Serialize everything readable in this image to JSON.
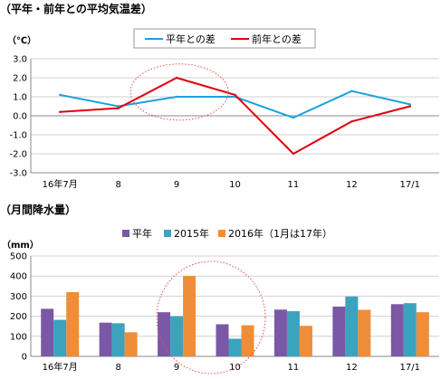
{
  "titles": {
    "temp": "（平年・前年との平均気温差）",
    "rain": "（月間降水量）"
  },
  "chart_data": [
    {
      "type": "line",
      "unit": "（℃）",
      "categories": [
        "16年7月",
        "8",
        "9",
        "10",
        "11",
        "12",
        "17/1"
      ],
      "ylim": [
        -3.0,
        3.0
      ],
      "yticks": [
        "3.0",
        "2.0",
        "1.0",
        "0.0",
        "-1.0",
        "-2.0",
        "-3.0"
      ],
      "grid": true,
      "legend_position": "top",
      "series": [
        {
          "name": "平年との差",
          "color": "#1aa3dc",
          "values": [
            1.1,
            0.5,
            1.0,
            1.0,
            -0.1,
            1.3,
            0.6
          ]
        },
        {
          "name": "前年との差",
          "color": "#e0000f",
          "values": [
            0.2,
            0.4,
            2.0,
            1.1,
            -2.0,
            -0.3,
            0.5
          ]
        }
      ],
      "annotation": "dotted ellipse around month 9"
    },
    {
      "type": "bar",
      "unit": "（mm）",
      "categories": [
        "16年7月",
        "8",
        "9",
        "10",
        "11",
        "12",
        "17/1"
      ],
      "ylim": [
        0,
        500
      ],
      "yticks": [
        "500",
        "400",
        "300",
        "200",
        "100",
        "0"
      ],
      "grid": true,
      "legend_position": "top",
      "series": [
        {
          "name": "平年",
          "color": "#7a58a6",
          "values": [
            237,
            168,
            220,
            160,
            233,
            248,
            260
          ]
        },
        {
          "name": "2015年",
          "color": "#3ba3bd",
          "values": [
            182,
            165,
            200,
            88,
            225,
            298,
            265
          ]
        },
        {
          "name": "2016年（1月は17年）",
          "color": "#f08d38",
          "values": [
            320,
            120,
            400,
            155,
            152,
            232,
            220
          ]
        }
      ],
      "annotation": "dotted ellipse around months 9 and 10"
    }
  ]
}
